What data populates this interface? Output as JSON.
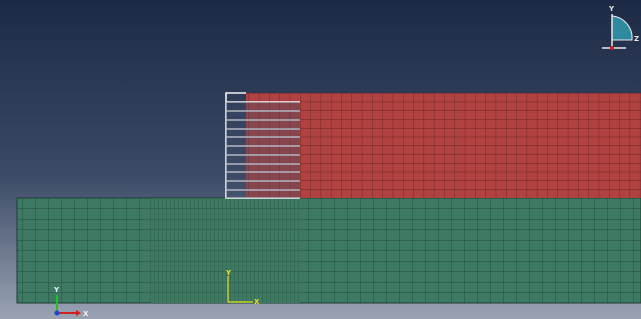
{
  "global_triad": {
    "y": "Y",
    "x": "X"
  },
  "local_axes": {
    "y": "Y",
    "x": "X"
  },
  "view_icon": {
    "y": "Y",
    "z": "Z"
  }
}
